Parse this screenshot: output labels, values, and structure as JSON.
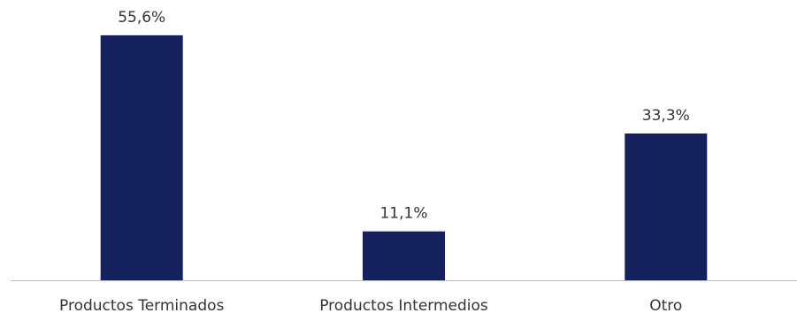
{
  "chart_data": {
    "type": "bar",
    "title": "",
    "xlabel": "",
    "ylabel": "",
    "categories": [
      "Productos Terminados",
      "Productos Intermedios",
      "Otro"
    ],
    "values": [
      55.6,
      11.1,
      33.3
    ],
    "value_labels": [
      "55,6%",
      "11,1%",
      "33,3%"
    ],
    "ylim": [
      0,
      62
    ],
    "grid": false,
    "legend": "none",
    "bar_color": "#14215C",
    "axis_color": "#BFBFBF",
    "label_color": "#333333"
  }
}
